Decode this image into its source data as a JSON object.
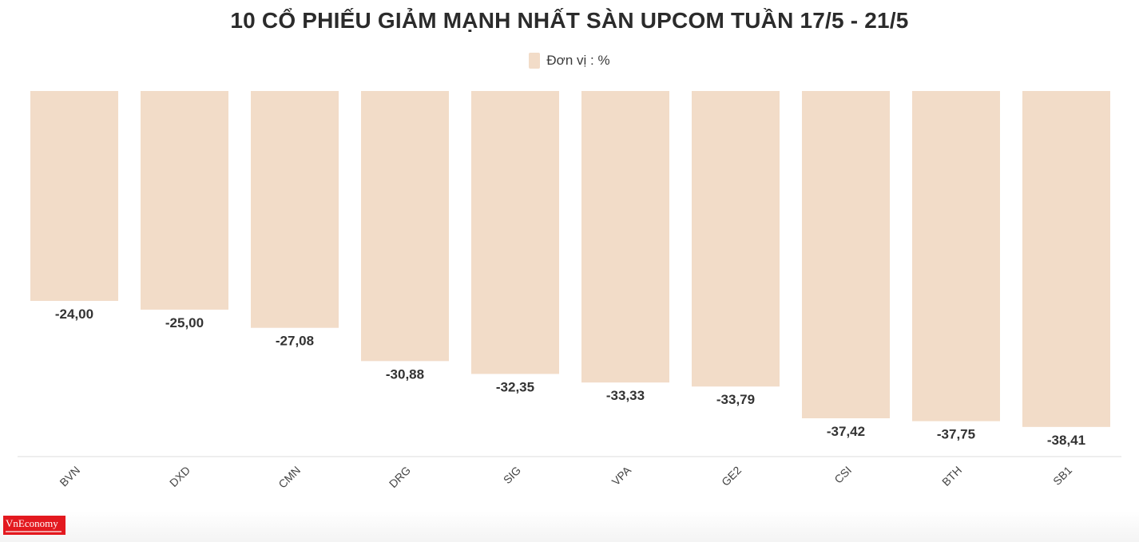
{
  "chart_data": {
    "type": "bar",
    "title": "10 CỔ PHIẾU GIẢM MẠNH NHẤT SÀN UPCOM TUẦN 17/5 - 21/5",
    "legend": "Đơn vị : %",
    "categories": [
      "BVN",
      "DXD",
      "CMN",
      "DRG",
      "SIG",
      "VPA",
      "GE2",
      "CSI",
      "BTH",
      "SB1"
    ],
    "values": [
      -24.0,
      -25.0,
      -27.08,
      -30.88,
      -32.35,
      -33.33,
      -33.79,
      -37.42,
      -37.75,
      -38.41
    ],
    "value_labels": [
      "-24,00",
      "-25,00",
      "-27,08",
      "-30,88",
      "-32,35",
      "-33,33",
      "-33,79",
      "-37,42",
      "-37,75",
      "-38,41"
    ],
    "bar_color": "#f2dcc8",
    "ylim": [
      -41.8,
      0
    ],
    "grid": false,
    "legend_position": "top-center"
  },
  "brand": {
    "logo_text": "VnEconomy",
    "color": "#e3191f"
  }
}
